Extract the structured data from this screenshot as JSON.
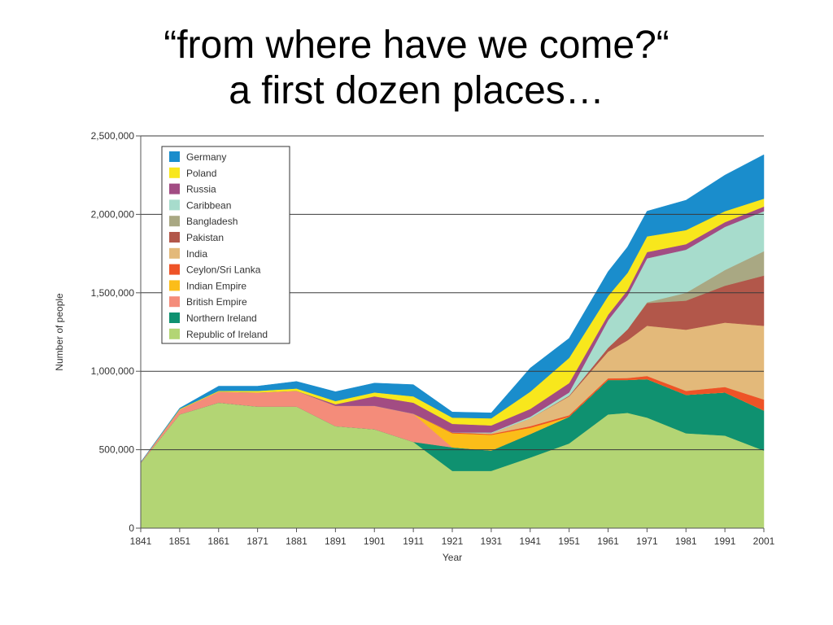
{
  "slide": {
    "title_line1": "“from where have we come?“",
    "title_line2": "a first dozen places…"
  },
  "chart_data": {
    "type": "area",
    "stacked": true,
    "xlabel": "Year",
    "ylabel": "Number of people",
    "x": [
      1841,
      1851,
      1861,
      1871,
      1881,
      1891,
      1901,
      1911,
      1921,
      1931,
      1941,
      1951,
      1961,
      1966,
      1971,
      1981,
      1991,
      2001
    ],
    "xticks": [
      "1841",
      "1851",
      "1861",
      "1871",
      "1881",
      "1891",
      "1901",
      "1911",
      "1921",
      "1931",
      "1941",
      "1951",
      "1961",
      "1971",
      "1981",
      "1991",
      "2001"
    ],
    "ylim": [
      0,
      2500000
    ],
    "yticks": [
      "0",
      "500,000",
      "1,000,000",
      "1,500,000",
      "2,000,000",
      "2,500,000"
    ],
    "ytick_values": [
      0,
      500000,
      1000000,
      1500000,
      2000000,
      2500000
    ],
    "grid": "horizontal",
    "legend_position": "top-left",
    "series": [
      {
        "name": "Republic of Ireland",
        "color": "#b3d574",
        "values": [
          415000,
          725000,
          800000,
          775000,
          775000,
          650000,
          630000,
          550000,
          365000,
          365000,
          450000,
          540000,
          725000,
          735000,
          705000,
          605000,
          590000,
          495000
        ]
      },
      {
        "name": "Northern Ireland",
        "color": "#0f9170",
        "values": [
          0,
          0,
          0,
          0,
          0,
          0,
          0,
          0,
          150000,
          130000,
          150000,
          170000,
          220000,
          210000,
          245000,
          245000,
          275000,
          255000
        ]
      },
      {
        "name": "British Empire",
        "color": "#f48c7a",
        "values": [
          5000,
          30000,
          70000,
          90000,
          100000,
          130000,
          150000,
          180000,
          0,
          0,
          0,
          0,
          0,
          0,
          0,
          0,
          0,
          0
        ]
      },
      {
        "name": "Indian Empire",
        "color": "#fbbd19",
        "values": [
          0,
          0,
          0,
          0,
          0,
          0,
          0,
          0,
          90000,
          100000,
          40000,
          0,
          0,
          0,
          0,
          0,
          0,
          0
        ]
      },
      {
        "name": "Ceylon/Sri Lanka",
        "color": "#ee5327",
        "values": [
          0,
          0,
          0,
          0,
          0,
          0,
          0,
          0,
          5000,
          5000,
          10000,
          10000,
          10000,
          12000,
          20000,
          25000,
          35000,
          70000
        ]
      },
      {
        "name": "India",
        "color": "#e3b97a",
        "values": [
          0,
          0,
          0,
          0,
          0,
          0,
          0,
          0,
          0,
          5000,
          50000,
          120000,
          170000,
          240000,
          320000,
          390000,
          410000,
          470000
        ]
      },
      {
        "name": "Pakistan",
        "color": "#b2574a",
        "values": [
          0,
          0,
          0,
          0,
          0,
          0,
          0,
          0,
          0,
          0,
          0,
          5000,
          25000,
          70000,
          145000,
          185000,
          235000,
          320000
        ]
      },
      {
        "name": "Bangladesh",
        "color": "#a9a883",
        "values": [
          0,
          0,
          0,
          0,
          0,
          0,
          0,
          0,
          0,
          0,
          0,
          0,
          0,
          0,
          5000,
          50000,
          100000,
          155000
        ]
      },
      {
        "name": "Caribbean",
        "color": "#a7dccc",
        "values": [
          0,
          0,
          0,
          0,
          0,
          0,
          0,
          0,
          0,
          5000,
          10000,
          20000,
          175000,
          215000,
          280000,
          275000,
          275000,
          255000
        ]
      },
      {
        "name": "Russia",
        "color": "#a24c83",
        "values": [
          0,
          0,
          0,
          0,
          0,
          10000,
          60000,
          70000,
          55000,
          45000,
          50000,
          60000,
          35000,
          35000,
          40000,
          35000,
          30000,
          30000
        ]
      },
      {
        "name": "Poland",
        "color": "#f8e71c",
        "values": [
          0,
          5000,
          5000,
          10000,
          15000,
          20000,
          25000,
          40000,
          40000,
          45000,
          110000,
          160000,
          120000,
          110000,
          100000,
          90000,
          70000,
          50000
        ]
      },
      {
        "name": "Germany",
        "color": "#1a8dcc",
        "values": [
          0,
          5000,
          30000,
          30000,
          45000,
          60000,
          60000,
          75000,
          35000,
          35000,
          150000,
          125000,
          155000,
          165000,
          160000,
          190000,
          230000,
          280000
        ]
      }
    ]
  }
}
